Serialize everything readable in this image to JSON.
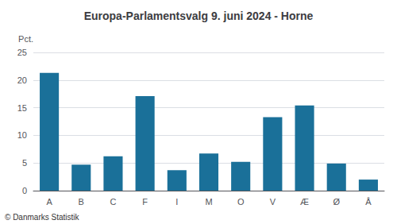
{
  "chart_data": {
    "type": "bar",
    "title": "Europa-Parlamentsvalg 9. juni 2024 - Horne",
    "categories": [
      "A",
      "B",
      "C",
      "F",
      "I",
      "M",
      "O",
      "V",
      "Æ",
      "Ø",
      "Å"
    ],
    "values": [
      21.3,
      4.7,
      6.2,
      17.1,
      3.7,
      6.7,
      5.2,
      13.3,
      15.4,
      4.9,
      2.0
    ],
    "color": "#1a7099",
    "ylabel": "Pct.",
    "ylim": [
      0,
      25
    ],
    "yticks": [
      0,
      5,
      10,
      15,
      20,
      25
    ],
    "grid": true,
    "annotations": [
      "© Danmarks Statistik"
    ]
  }
}
